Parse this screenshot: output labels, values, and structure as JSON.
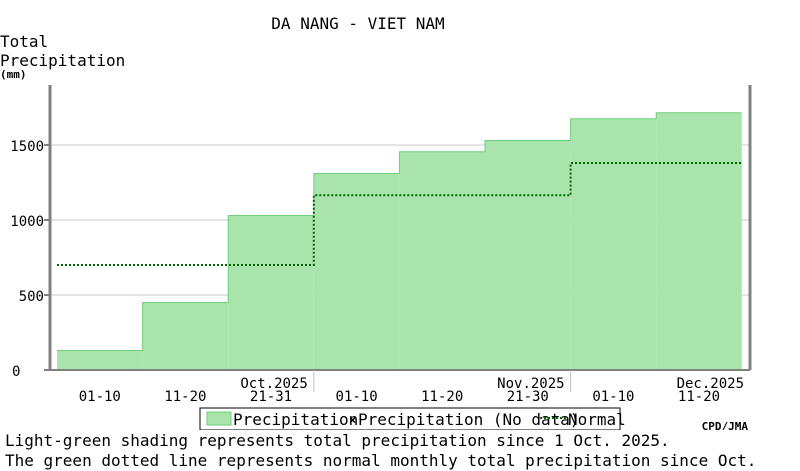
{
  "chart_data": {
    "type": "area",
    "title": "DA NANG - VIET NAM",
    "ylabel_lines": [
      "Total",
      "Precipitation"
    ],
    "yunit": "(mm)",
    "ylim": [
      0,
      1900
    ],
    "yticks": [
      0,
      500,
      1000,
      1500
    ],
    "grid": true,
    "periods": [
      {
        "label": "01-10",
        "precipitation": 130,
        "normal": 700
      },
      {
        "label": "11-20",
        "precipitation": 450,
        "normal": 700
      },
      {
        "label": "21-31",
        "precipitation": 1030,
        "normal": 700
      },
      {
        "label": "01-10",
        "precipitation": 1310,
        "normal": 1165
      },
      {
        "label": "11-20",
        "precipitation": 1455,
        "normal": 1165
      },
      {
        "label": "21-30",
        "precipitation": 1530,
        "normal": 1165
      },
      {
        "label": "01-10",
        "precipitation": 1675,
        "normal": 1380
      },
      {
        "label": "11-20",
        "precipitation": 1715,
        "normal": 1380
      }
    ],
    "months": [
      {
        "label": "Oct.2025",
        "start_period": 0
      },
      {
        "label": "Nov.2025",
        "start_period": 3
      },
      {
        "label": "Dec.2025",
        "start_period": 6
      }
    ],
    "legend": {
      "precipitation": "Precipitation",
      "no_data": "Precipitation (No data)",
      "normal": "Normal"
    },
    "credit": "CPD/JMA",
    "colors": {
      "precip_fill": "#a9e4ac",
      "precip_edge": "#6fcf7a",
      "normal_line": "#006400",
      "grid": "#c8c8c8",
      "axis": "#808080"
    }
  },
  "captions": [
    "Light-green shading represents total precipitation since 1 Oct. 2025.",
    "The green dotted line represents normal monthly total precipitation since Oct."
  ]
}
